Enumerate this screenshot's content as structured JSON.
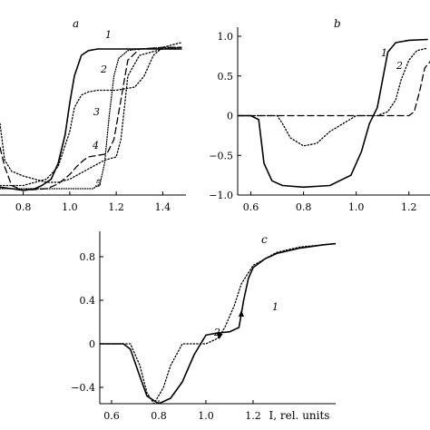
{
  "chart_data": [
    {
      "panel": "a",
      "type": "line",
      "xlabel": "",
      "ylabel": "",
      "xlim": [
        0.7,
        1.5
      ],
      "ylim": [
        0.0,
        1.0
      ],
      "x_ticks": [
        "0.8",
        "1.0",
        "1.2",
        "1.4"
      ],
      "y_ticks": [],
      "series": [
        {
          "label": "1",
          "style": "solid",
          "x": [
            0.7,
            0.75,
            0.8,
            0.85,
            0.88,
            0.92,
            0.95,
            0.98,
            1.0,
            1.02,
            1.05,
            1.08,
            1.12,
            1.2,
            1.3,
            1.4,
            1.48
          ],
          "y": [
            0.05,
            0.04,
            0.03,
            0.04,
            0.06,
            0.1,
            0.2,
            0.38,
            0.58,
            0.75,
            0.88,
            0.91,
            0.92,
            0.92,
            0.92,
            0.92,
            0.92
          ]
        },
        {
          "label": "2",
          "style": "dotted",
          "x": [
            0.7,
            0.8,
            0.9,
            0.95,
            1.0,
            1.02,
            1.05,
            1.08,
            1.12,
            1.2,
            1.28,
            1.32,
            1.36,
            1.4,
            1.45,
            1.48
          ],
          "y": [
            0.06,
            0.06,
            0.1,
            0.18,
            0.4,
            0.55,
            0.63,
            0.65,
            0.66,
            0.66,
            0.68,
            0.75,
            0.88,
            0.93,
            0.95,
            0.96
          ]
        },
        {
          "label": "3",
          "style": "dashed",
          "x": [
            0.7,
            0.72,
            0.75,
            0.8,
            0.9,
            0.95,
            1.0,
            1.03,
            1.06,
            1.08,
            1.12,
            1.16,
            1.19,
            1.22,
            1.25,
            1.3,
            1.4,
            1.48
          ],
          "y": [
            0.3,
            0.18,
            0.06,
            0.03,
            0.04,
            0.07,
            0.13,
            0.18,
            0.22,
            0.24,
            0.25,
            0.26,
            0.35,
            0.6,
            0.85,
            0.92,
            0.93,
            0.93
          ]
        },
        {
          "label": "4",
          "style": "dotted",
          "x": [
            0.7,
            0.72,
            0.75,
            0.8,
            0.9,
            0.95,
            1.0,
            1.05,
            1.1,
            1.15,
            1.2,
            1.22,
            1.25,
            1.3,
            1.4,
            1.48
          ],
          "y": [
            0.45,
            0.22,
            0.15,
            0.12,
            0.08,
            0.08,
            0.1,
            0.14,
            0.18,
            0.22,
            0.24,
            0.35,
            0.75,
            0.88,
            0.92,
            0.93
          ]
        },
        {
          "label": "5",
          "style": "dotted-fine",
          "x": [
            0.7,
            0.8,
            0.9,
            1.0,
            1.1,
            1.13,
            1.15,
            1.17,
            1.19,
            1.21,
            1.25,
            1.3,
            1.4,
            1.48
          ],
          "y": [
            0.04,
            0.04,
            0.04,
            0.04,
            0.04,
            0.07,
            0.2,
            0.5,
            0.75,
            0.86,
            0.91,
            0.92,
            0.93,
            0.93
          ]
        }
      ]
    },
    {
      "panel": "b",
      "type": "line",
      "xlabel": "",
      "ylabel": "",
      "xlim": [
        0.55,
        1.28
      ],
      "ylim": [
        -1.0,
        1.0
      ],
      "x_ticks": [
        "0.6",
        "0.8",
        "1.0",
        "1.2"
      ],
      "y_ticks": [
        "1.0",
        "0.5",
        "0",
        "−0.5",
        "−1.0"
      ],
      "series": [
        {
          "label": "1",
          "style": "solid",
          "x": [
            0.55,
            0.6,
            0.63,
            0.65,
            0.68,
            0.72,
            0.8,
            0.9,
            0.98,
            1.02,
            1.05,
            1.08,
            1.1,
            1.12,
            1.15,
            1.2,
            1.27
          ],
          "y": [
            0,
            0,
            -0.05,
            -0.6,
            -0.82,
            -0.88,
            -0.9,
            -0.88,
            -0.75,
            -0.45,
            -0.1,
            0.1,
            0.45,
            0.8,
            0.92,
            0.95,
            0.96
          ]
        },
        {
          "label": "2",
          "style": "dotted",
          "x": [
            0.55,
            0.7,
            0.72,
            0.75,
            0.8,
            0.85,
            0.9,
            1.0,
            1.08,
            1.12,
            1.15,
            1.17,
            1.2,
            1.23,
            1.27
          ],
          "y": [
            0,
            0,
            -0.1,
            -0.28,
            -0.38,
            -0.35,
            -0.2,
            0,
            0,
            0.05,
            0.2,
            0.45,
            0.7,
            0.82,
            0.85
          ]
        },
        {
          "label": "",
          "style": "dashed",
          "x": [
            0.55,
            1.1,
            1.2,
            1.22,
            1.24,
            1.26,
            1.28
          ],
          "y": [
            0,
            0,
            0,
            0.05,
            0.3,
            0.6,
            0.68
          ]
        }
      ]
    },
    {
      "panel": "c",
      "type": "line",
      "xlabel": "I, rel. units",
      "ylabel": "",
      "xlim": [
        0.55,
        1.55
      ],
      "ylim": [
        -0.55,
        0.95
      ],
      "x_ticks": [
        "0.6",
        "0.8",
        "1.0",
        "1.2"
      ],
      "y_ticks": [
        "0.8",
        "0.4",
        "0",
        "−0.4"
      ],
      "series": [
        {
          "label": "1",
          "style": "solid",
          "x": [
            0.55,
            0.65,
            0.68,
            0.72,
            0.75,
            0.8,
            0.85,
            0.9,
            0.95,
            1.0,
            1.05,
            1.1,
            1.14,
            1.16,
            1.18,
            1.2,
            1.25,
            1.3,
            1.4,
            1.5,
            1.55
          ],
          "y": [
            0,
            0,
            -0.05,
            -0.3,
            -0.48,
            -0.55,
            -0.5,
            -0.35,
            -0.1,
            0.08,
            0.1,
            0.11,
            0.15,
            0.4,
            0.6,
            0.7,
            0.78,
            0.83,
            0.88,
            0.91,
            0.92
          ]
        },
        {
          "label": "2",
          "style": "dotted",
          "x": [
            0.55,
            0.68,
            0.72,
            0.75,
            0.78,
            0.82,
            0.85,
            0.9,
            1.0,
            1.05,
            1.08,
            1.12,
            1.15,
            1.2,
            1.3,
            1.4,
            1.5,
            1.55
          ],
          "y": [
            0,
            0,
            -0.2,
            -0.45,
            -0.55,
            -0.4,
            -0.2,
            0,
            0,
            0.05,
            0.15,
            0.35,
            0.55,
            0.72,
            0.84,
            0.89,
            0.91,
            0.92
          ]
        }
      ],
      "arrows": [
        {
          "series": "1",
          "at_x": 1.15,
          "direction": "up"
        },
        {
          "series": "2",
          "at_x": 1.06,
          "direction": "down"
        }
      ]
    }
  ]
}
